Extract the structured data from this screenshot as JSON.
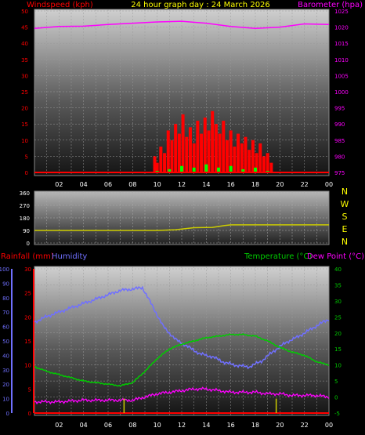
{
  "header": {
    "title": "24 hour graph day : 24 March 2026"
  },
  "colors": {
    "wind": "#ff0000",
    "gust_green": "#00ff00",
    "barometer": "#ff00ff",
    "direction": "#cccc00",
    "humidity": "#7070ff",
    "temperature": "#00cc00",
    "dewpoint": "#ff00ff",
    "rain": "#ff0000",
    "compass": "#ffff00",
    "tick_text": "#ffffff"
  },
  "compass_labels": [
    "N",
    "W",
    "S",
    "E",
    "N"
  ],
  "chart_data": [
    {
      "type": "bar",
      "panel": "wind-barometer",
      "left_axis_label": "Windspeed (kph)",
      "right_axis_label": "Barometer (hpa)",
      "x_ticks": [
        "02",
        "04",
        "06",
        "08",
        "10",
        "12",
        "14",
        "16",
        "18",
        "20",
        "22",
        "00"
      ],
      "ylim_left": [
        0,
        50
      ],
      "yticks_left": [
        0,
        5,
        10,
        15,
        20,
        25,
        30,
        35,
        40,
        45,
        50
      ],
      "ylim_right": [
        975,
        1025
      ],
      "yticks_right": [
        975,
        980,
        985,
        990,
        995,
        1000,
        1005,
        1010,
        1015,
        1020,
        1025
      ],
      "grid": true,
      "series": [
        {
          "name": "Barometer (hpa)",
          "axis": "right",
          "x": [
            0,
            2,
            4,
            6,
            8,
            10,
            12,
            14,
            16,
            18,
            20,
            22,
            24
          ],
          "values": [
            1019.6,
            1020.2,
            1020.3,
            1020.8,
            1021.2,
            1021.6,
            1021.8,
            1021.2,
            1020.2,
            1019.6,
            1020.0,
            1021.0,
            1020.8
          ]
        },
        {
          "name": "Windspeed (kph)",
          "axis": "left",
          "x": [
            9.8,
            10,
            10.3,
            10.6,
            10.9,
            11.2,
            11.5,
            11.8,
            12.1,
            12.4,
            12.7,
            13.0,
            13.3,
            13.6,
            13.9,
            14.2,
            14.5,
            14.8,
            15.1,
            15.4,
            15.7,
            16.0,
            16.3,
            16.6,
            16.9,
            17.2,
            17.5,
            17.8,
            18.1,
            18.4,
            18.7,
            19.0,
            19.3
          ],
          "values": [
            5,
            3,
            8,
            6,
            13,
            10,
            15,
            12,
            18,
            11,
            14,
            9,
            16,
            12,
            17,
            13,
            19,
            15,
            12,
            16,
            10,
            13,
            8,
            12,
            9,
            11,
            7,
            10,
            6,
            9,
            5,
            6,
            3
          ]
        },
        {
          "name": "Gust average",
          "axis": "left",
          "x": [
            10,
            11,
            12,
            13,
            14,
            15,
            16,
            17,
            18,
            19
          ],
          "values": [
            0.5,
            1,
            2,
            1.5,
            2.5,
            1.5,
            2,
            1,
            1.5,
            0.5
          ]
        }
      ]
    },
    {
      "type": "line",
      "panel": "wind-direction",
      "x_ticks": [
        "02",
        "04",
        "06",
        "08",
        "10",
        "12",
        "14",
        "16",
        "18",
        "20",
        "22",
        "00"
      ],
      "ylim": [
        0,
        360
      ],
      "yticks": [
        0,
        90,
        180,
        270,
        360
      ],
      "grid": true,
      "series": [
        {
          "name": "Wind direction",
          "x": [
            0,
            8,
            10,
            11.5,
            13,
            14.5,
            15.5,
            16,
            18,
            20,
            22,
            24
          ],
          "values": [
            90,
            90,
            90,
            95,
            110,
            112,
            125,
            130,
            130,
            130,
            130,
            130
          ]
        }
      ]
    },
    {
      "type": "line",
      "panel": "temp-humidity-rain",
      "left_axis_label_rain": "Rainfall (mm)",
      "left_axis_label_humidity": "Humidity",
      "right_axis_label_temp": "Temperature (°C)",
      "right_axis_label_dew": "Dew Point (°C)",
      "x_ticks": [
        "02",
        "04",
        "06",
        "08",
        "10",
        "12",
        "14",
        "16",
        "18",
        "20",
        "22",
        "00"
      ],
      "humidity_ticks": [
        0,
        10,
        20,
        30,
        40,
        50,
        60,
        70,
        80,
        90,
        100
      ],
      "rain_ticks": [
        0,
        5,
        10,
        15,
        20,
        25,
        30
      ],
      "ylim_rain": [
        0,
        30
      ],
      "ylim_humidity": [
        0,
        100
      ],
      "ylim_temp": [
        -5,
        40
      ],
      "yticks_temp": [
        -5,
        0,
        5,
        10,
        15,
        20,
        25,
        30,
        35,
        40
      ],
      "grid": true,
      "series": [
        {
          "name": "Humidity",
          "axis": "humidity",
          "x": [
            0,
            1,
            2,
            3,
            4,
            5,
            6,
            7,
            8,
            8.8,
            9.5,
            10.5,
            11.5,
            12.5,
            13.5,
            14.5,
            15.5,
            16.5,
            17.5,
            18.5,
            19.5,
            20.5,
            21.5,
            22.5,
            23.5,
            24
          ],
          "values": [
            63,
            67,
            70,
            73,
            76,
            79,
            82,
            85,
            86,
            87,
            76,
            60,
            51,
            46,
            41,
            39,
            35,
            33,
            32,
            36,
            43,
            49,
            53,
            58,
            63,
            65
          ]
        },
        {
          "name": "Temperature (°C)",
          "axis": "temp",
          "x": [
            0,
            1,
            2,
            3,
            4,
            5,
            6,
            7,
            8,
            9,
            10,
            11,
            12,
            13,
            14,
            15,
            16,
            17,
            18,
            19,
            20,
            21,
            22,
            23,
            24
          ],
          "values": [
            9.5,
            8,
            7,
            6,
            5,
            4.5,
            4,
            3.5,
            4.5,
            8,
            12,
            15,
            16.5,
            17.5,
            18.5,
            19,
            19.5,
            19.5,
            19,
            17.5,
            15.5,
            14,
            13,
            11,
            10
          ]
        },
        {
          "name": "Dew Point (°C)",
          "axis": "temp",
          "x": [
            0,
            2,
            4,
            6,
            7,
            8,
            9,
            10,
            11,
            12,
            13,
            14,
            15,
            16,
            17,
            18,
            19,
            20,
            21,
            22,
            23,
            24
          ],
          "values": [
            -1.5,
            -1.5,
            -1,
            -1,
            -1,
            -1,
            0,
            1,
            1.5,
            2,
            2.5,
            2.5,
            2,
            1.5,
            1.5,
            1.5,
            1,
            1,
            0.5,
            0.5,
            0.5,
            0
          ],
          "noisy": true
        },
        {
          "name": "Rainfall (mm)",
          "axis": "rain",
          "x": [
            0,
            24
          ],
          "values": [
            0,
            0
          ]
        },
        {
          "name": "Rain markers",
          "axis": "rain",
          "markers_x": [
            7.3,
            19.7
          ],
          "marker_value": 3
        }
      ]
    }
  ]
}
